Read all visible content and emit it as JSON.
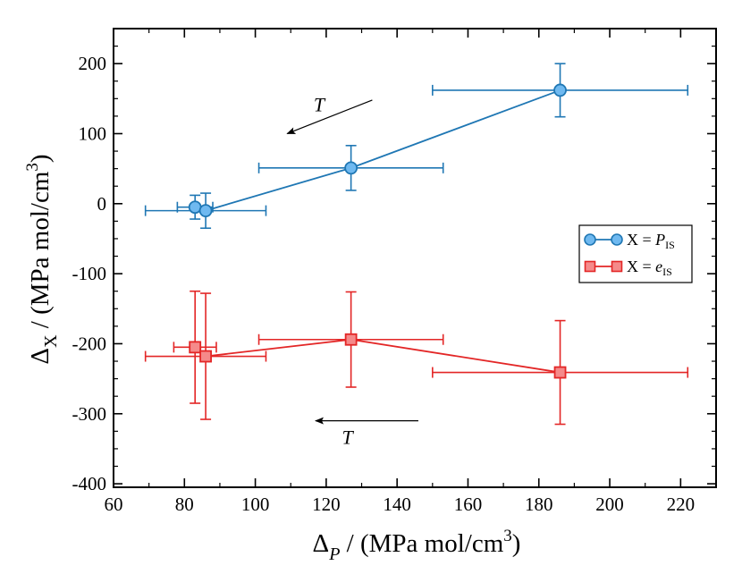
{
  "chart_data": {
    "type": "scatter",
    "xlabel": {
      "main": "Δ",
      "sub": "P",
      "rest": " / (MPa mol/cm",
      "sup": "3",
      "end": ")"
    },
    "ylabel": {
      "main": "Δ",
      "sub": "X",
      "rest": " / (MPa mol/cm",
      "sup": "3",
      "end": ")"
    },
    "xlim": [
      60,
      230
    ],
    "ylim": [
      -405,
      250
    ],
    "x_ticks": [
      60,
      80,
      100,
      120,
      140,
      160,
      180,
      200,
      220
    ],
    "y_ticks": [
      -400,
      -300,
      -200,
      -100,
      0,
      100,
      200
    ],
    "x_tick_labels": [
      "60",
      "80",
      "100",
      "120",
      "140",
      "160",
      "180",
      "200",
      "220"
    ],
    "y_tick_labels": [
      "-400",
      "-300",
      "-200",
      "-100",
      "0",
      "100",
      "200"
    ],
    "series": [
      {
        "name": "X = P_IS",
        "legend": {
          "prefix": "X = ",
          "var": "P",
          "sub": "IS"
        },
        "color": "#1f77b4",
        "fill": "#6fb9f0",
        "marker": "circle",
        "points": [
          {
            "x": 83,
            "y": -5,
            "xerr": 5,
            "yerr": 17
          },
          {
            "x": 86,
            "y": -10,
            "xerr": 17,
            "yerr": 25
          },
          {
            "x": 127,
            "y": 51,
            "xerr": 26,
            "yerr": 32
          },
          {
            "x": 186,
            "y": 162,
            "xerr": 36,
            "yerr": 38
          }
        ]
      },
      {
        "name": "X = e_IS",
        "legend": {
          "prefix": "X = ",
          "var": "e",
          "sub": "IS"
        },
        "color": "#e32626",
        "fill": "#f58a8a",
        "marker": "square",
        "points": [
          {
            "x": 83,
            "y": -205,
            "xerr": 6,
            "yerr": 80
          },
          {
            "x": 86,
            "y": -218,
            "xerr": 17,
            "yerr": 90
          },
          {
            "x": 127,
            "y": -194,
            "xerr": 26,
            "yerr": 68
          },
          {
            "x": 186,
            "y": -241,
            "xerr": 36,
            "yerr": 74
          }
        ]
      }
    ],
    "annotations": [
      {
        "text": "T",
        "arrow_from": [
          133,
          148
        ],
        "arrow_to": [
          109,
          100
        ],
        "text_pos": [
          118,
          142
        ]
      },
      {
        "text": "T",
        "arrow_from": [
          146,
          -310
        ],
        "arrow_to": [
          117,
          -310
        ],
        "text_pos": [
          126,
          -333
        ]
      }
    ],
    "legend_position": "right"
  }
}
